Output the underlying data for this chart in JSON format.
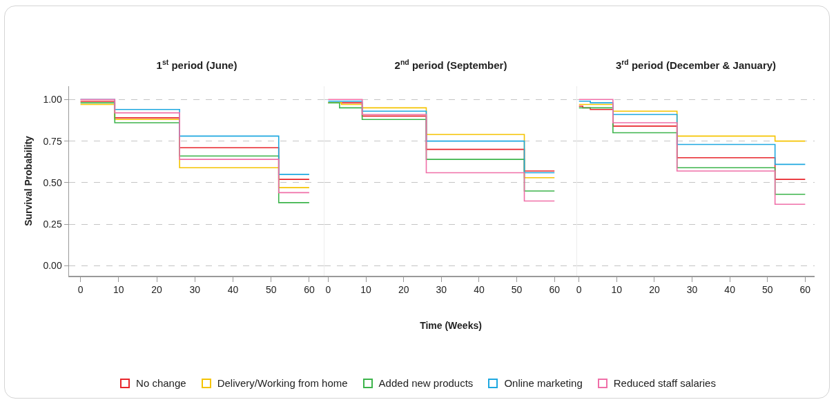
{
  "chart_data": [
    {
      "type": "step",
      "title": "1$^{st}$ period (June)",
      "ylabel": "Survival Probability",
      "xlim": [
        -3,
        64
      ],
      "xticks": [
        0,
        10,
        20,
        30,
        40,
        50,
        60
      ],
      "ylim": [
        -0.06,
        1.08
      ],
      "yticks": [
        {
          "value": 0,
          "label": "0.00"
        },
        {
          "value": 0.25,
          "label": "0.25"
        },
        {
          "value": 0.5,
          "label": "0.50"
        },
        {
          "value": 0.75,
          "label": "0.75"
        },
        {
          "value": 1,
          "label": "1.00"
        }
      ],
      "grid": "y",
      "legend": "bottom",
      "series": [
        {
          "name": "No change",
          "color": "#e8252b",
          "x": [
            0,
            9,
            26,
            52,
            60
          ],
          "values": [
            0.99,
            0.89,
            0.71,
            0.52,
            0.52
          ]
        },
        {
          "name": "Delivery/Working from home",
          "color": "#f5c400",
          "x": [
            0,
            9,
            26,
            52,
            60
          ],
          "values": [
            0.97,
            0.88,
            0.59,
            0.47,
            0.47
          ]
        },
        {
          "name": "Added new products",
          "color": "#3cb44b",
          "x": [
            0,
            9,
            26,
            52,
            60
          ],
          "values": [
            0.98,
            0.86,
            0.66,
            0.38,
            0.38
          ]
        },
        {
          "name": "Online marketing",
          "color": "#1ea8e0",
          "x": [
            0,
            9,
            26,
            52,
            60
          ],
          "values": [
            1.0,
            0.94,
            0.78,
            0.55,
            0.55
          ]
        },
        {
          "name": "Reduced staff salaries",
          "color": "#f06fa8",
          "x": [
            0,
            9,
            26,
            52,
            60
          ],
          "values": [
            1.0,
            0.92,
            0.64,
            0.44,
            0.44
          ]
        }
      ]
    },
    {
      "type": "step",
      "title": "2$^{nd}$ period (September)",
      "xlabel": "Time (Weeks)",
      "xlim": [
        -1,
        66
      ],
      "xticks": [
        0,
        10,
        20,
        30,
        40,
        50,
        60
      ],
      "ylim": [
        -0.06,
        1.08
      ],
      "yticks": [
        {
          "value": 0,
          "label": null
        },
        {
          "value": 0.25,
          "label": null
        },
        {
          "value": 0.5,
          "label": null
        },
        {
          "value": 0.75,
          "label": null
        },
        {
          "value": 1,
          "label": null
        }
      ],
      "grid": "y",
      "tick_labels": "x",
      "series": [
        {
          "color": "#e8252b",
          "x": [
            0,
            9,
            26,
            52,
            60
          ],
          "values": [
            0.98,
            0.9,
            0.7,
            0.57,
            0.57
          ]
        },
        {
          "color": "#f5c400",
          "x": [
            0,
            3.5,
            9,
            26,
            52,
            60
          ],
          "values": [
            0.98,
            0.97,
            0.95,
            0.79,
            0.53,
            0.53
          ]
        },
        {
          "color": "#3cb44b",
          "x": [
            0,
            3,
            9,
            26,
            52,
            60
          ],
          "values": [
            0.98,
            0.95,
            0.88,
            0.64,
            0.45,
            0.45
          ]
        },
        {
          "color": "#1ea8e0",
          "x": [
            0,
            9,
            26,
            52,
            60
          ],
          "values": [
            0.99,
            0.93,
            0.75,
            0.56,
            0.56
          ]
        },
        {
          "color": "#f06fa8",
          "x": [
            0,
            9,
            26,
            52,
            60
          ],
          "values": [
            1.0,
            0.91,
            0.56,
            0.39,
            0.39
          ]
        }
      ]
    },
    {
      "type": "step",
      "title": "3$^{rd}$ period (December & January)",
      "xlim": [
        -0.5,
        62.5
      ],
      "xticks": [
        0,
        10,
        20,
        30,
        40,
        50,
        60
      ],
      "ylim": [
        -0.06,
        1.08
      ],
      "yticks": [
        {
          "value": 0,
          "label": null
        },
        {
          "value": 0.25,
          "label": null
        },
        {
          "value": 0.5,
          "label": null
        },
        {
          "value": 0.75,
          "label": null
        },
        {
          "value": 1,
          "label": null
        }
      ],
      "grid": "y",
      "tick_labels": "x",
      "series": [
        {
          "color": "#e8252b",
          "x": [
            0,
            1,
            3,
            9,
            26,
            52,
            60
          ],
          "values": [
            0.96,
            0.95,
            0.94,
            0.84,
            0.65,
            0.52,
            0.52
          ]
        },
        {
          "color": "#f5c400",
          "x": [
            0,
            9,
            26,
            52,
            60
          ],
          "values": [
            0.97,
            0.93,
            0.78,
            0.75,
            0.75
          ]
        },
        {
          "color": "#3cb44b",
          "x": [
            0,
            9,
            26,
            52,
            60
          ],
          "values": [
            0.95,
            0.8,
            0.59,
            0.43,
            0.43
          ]
        },
        {
          "color": "#1ea8e0",
          "x": [
            0,
            3,
            9,
            26,
            52,
            60
          ],
          "values": [
            0.99,
            0.98,
            0.91,
            0.73,
            0.61,
            0.61
          ]
        },
        {
          "color": "#f06fa8",
          "x": [
            0,
            9,
            26,
            52,
            60
          ],
          "values": [
            1.0,
            0.86,
            0.57,
            0.37,
            0.37
          ]
        }
      ]
    }
  ]
}
